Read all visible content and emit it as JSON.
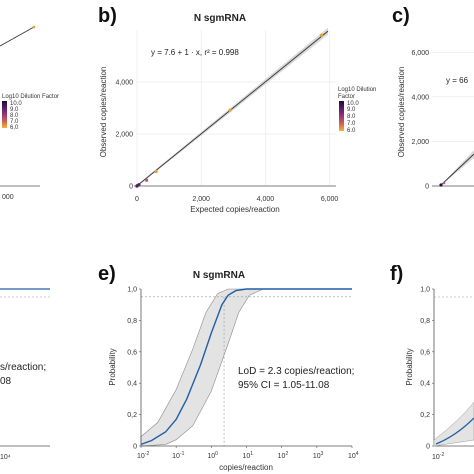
{
  "chart_data": [
    {
      "panel": "a",
      "type": "scatter",
      "partial": true,
      "xtick_fragment": "000",
      "legend": {
        "title": "Log10 Dilution Factor",
        "ticks": [
          "10.0",
          "9.0",
          "8.0",
          "7.0",
          "6.0"
        ]
      },
      "colors": {
        "high": "#2b0a4d",
        "mid": "#a0457b",
        "low": "#e9a22a"
      }
    },
    {
      "panel": "b",
      "panel_label": "b)",
      "type": "scatter",
      "title": "N sgmRNA",
      "xlabel": "Expected copies/reaction",
      "ylabel": "Observed copies/reaction",
      "xlim": [
        0,
        6200
      ],
      "ylim": [
        0,
        6000
      ],
      "xticks": [
        0,
        2000,
        4000,
        6000
      ],
      "xtick_labels": [
        "0",
        "2,000",
        "4,000",
        "6,000"
      ],
      "yticks": [
        0,
        2000,
        4000
      ],
      "ytick_labels": [
        "0",
        "2,000",
        "4,000"
      ],
      "equation": "y = 7.6 + 1 · x,   r² = 0.998",
      "fit": {
        "intercept": 7.6,
        "slope": 1
      },
      "legend": {
        "title": "Log10 Dilution Factor",
        "ticks": [
          "10.0",
          "9.0",
          "8.0",
          "7.0",
          "6.0"
        ]
      },
      "points": [
        {
          "x": 0,
          "y": 0,
          "c": "#2b0a4d"
        },
        {
          "x": 5,
          "y": 8,
          "c": "#2b0a4d"
        },
        {
          "x": 60,
          "y": 50,
          "c": "#5a1a6e"
        },
        {
          "x": 300,
          "y": 220,
          "c": "#c0587a"
        },
        {
          "x": 600,
          "y": 560,
          "c": "#e9a22a"
        },
        {
          "x": 2900,
          "y": 2920,
          "c": "#e9a22a"
        },
        {
          "x": 5750,
          "y": 5800,
          "c": "#e9a22a"
        }
      ]
    },
    {
      "panel": "c",
      "panel_label": "c)",
      "type": "scatter",
      "partial": true,
      "ylabel": "Observed copies/reaction",
      "ylim": [
        0,
        7000
      ],
      "yticks": [
        0,
        2000,
        4000,
        6000
      ],
      "ytick_labels": [
        "0",
        "2,000",
        "4,000",
        "6,000"
      ],
      "equation_fragment": "y = 66"
    },
    {
      "panel": "d",
      "type": "line",
      "partial": true,
      "lod_fragment": "s/reaction;",
      "ci_fragment": "08",
      "xtick_fragment": "10⁴"
    },
    {
      "panel": "e",
      "panel_label": "e)",
      "type": "line",
      "title": "N sgmRNA",
      "xlabel": "copies/reaction",
      "ylabel": "Probability",
      "xscale": "log",
      "xlim": [
        0.01,
        10000
      ],
      "ylim": [
        0,
        1.0
      ],
      "xtick_exponents": [
        "-2",
        "-1",
        "0",
        "1",
        "2",
        "3",
        "4"
      ],
      "yticks": [
        0,
        0.2,
        0.4,
        0.6,
        0.8,
        1.0
      ],
      "ytick_labels": [
        "0",
        "0,2",
        "0,4",
        "0,6",
        "0,8",
        "1,0"
      ],
      "lod_text": "LoD = 2.3 copies/reaction;",
      "ci_text": "95% CI = 1.05-11.08",
      "lod": 2.3,
      "ci": [
        1.05,
        11.08
      ],
      "reference_probability": 0.95,
      "curve": [
        {
          "x": 0.01,
          "y": 0.01
        },
        {
          "x": 0.02,
          "y": 0.035
        },
        {
          "x": 0.05,
          "y": 0.09
        },
        {
          "x": 0.1,
          "y": 0.17
        },
        {
          "x": 0.2,
          "y": 0.3
        },
        {
          "x": 0.5,
          "y": 0.52
        },
        {
          "x": 1,
          "y": 0.72
        },
        {
          "x": 2,
          "y": 0.9
        },
        {
          "x": 3,
          "y": 0.96
        },
        {
          "x": 5,
          "y": 0.99
        },
        {
          "x": 10,
          "y": 1.0
        },
        {
          "x": 100,
          "y": 1.0
        },
        {
          "x": 10000,
          "y": 1.0
        }
      ],
      "band_upper": [
        {
          "x": 0.01,
          "y": 0.06
        },
        {
          "x": 0.03,
          "y": 0.15
        },
        {
          "x": 0.1,
          "y": 0.36
        },
        {
          "x": 0.3,
          "y": 0.62
        },
        {
          "x": 0.7,
          "y": 0.85
        },
        {
          "x": 1.5,
          "y": 0.97
        },
        {
          "x": 3,
          "y": 1.0
        },
        {
          "x": 10000,
          "y": 1.0
        }
      ],
      "band_lower": [
        {
          "x": 0.01,
          "y": 0.0
        },
        {
          "x": 0.05,
          "y": 0.01
        },
        {
          "x": 0.1,
          "y": 0.04
        },
        {
          "x": 0.3,
          "y": 0.13
        },
        {
          "x": 1,
          "y": 0.35
        },
        {
          "x": 3,
          "y": 0.65
        },
        {
          "x": 6,
          "y": 0.85
        },
        {
          "x": 12,
          "y": 0.96
        },
        {
          "x": 30,
          "y": 1.0
        },
        {
          "x": 10000,
          "y": 1.0
        }
      ],
      "colors": {
        "curve": "#1f5fa6",
        "band": "#e3e3e3"
      }
    },
    {
      "panel": "f",
      "panel_label": "f)",
      "type": "line",
      "partial": true,
      "ylabel": "Probability",
      "yticks": [
        0,
        0.2,
        0.4,
        0.6,
        0.8,
        1.0
      ],
      "ytick_labels": [
        "0",
        "0,2",
        "0,4",
        "0,6",
        "0,8",
        "1,0"
      ],
      "xtick_exponents": [
        "-2"
      ]
    }
  ]
}
